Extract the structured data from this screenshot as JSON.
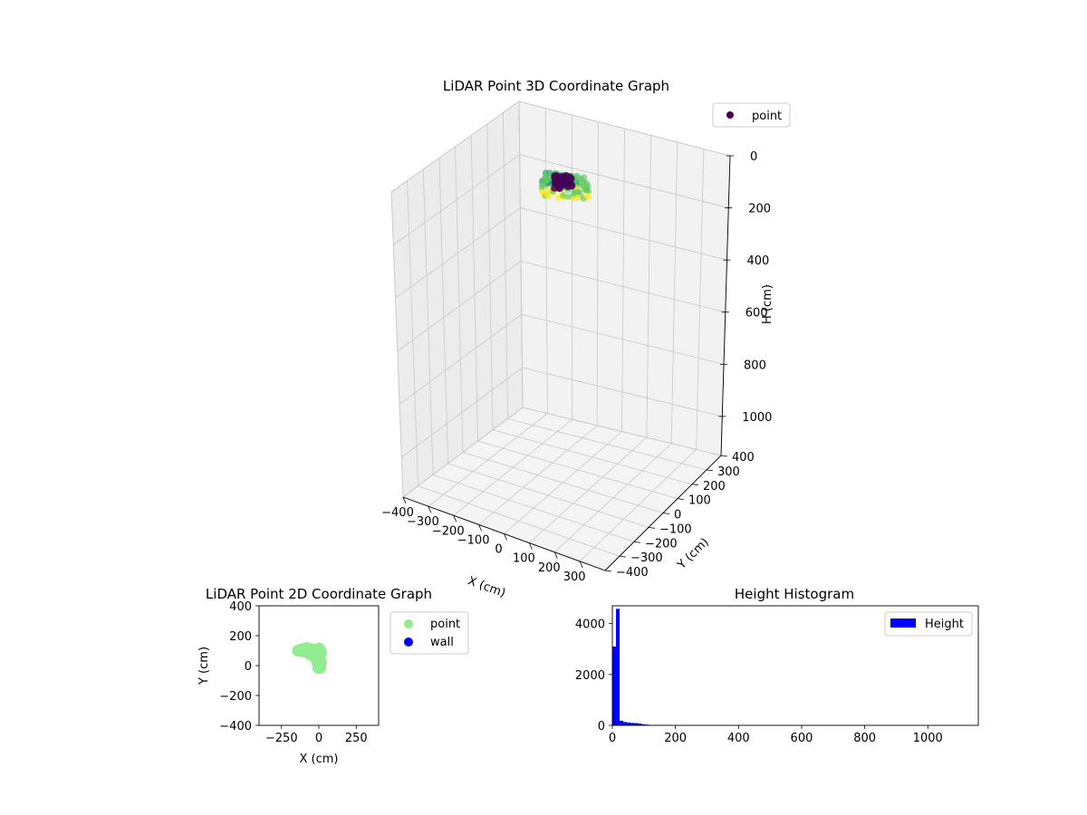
{
  "chart_data": [
    {
      "type": "scatter",
      "projection": "3d",
      "title": "LiDAR Point 3D Coordinate Graph",
      "xlabel": "X (cm)",
      "ylabel": "Y (cm)",
      "zlabel": "H (cm)",
      "xlim": [
        -400,
        400
      ],
      "ylim": [
        -400,
        400
      ],
      "zlim": [
        1150,
        0
      ],
      "xticks": [
        "−400",
        "−300",
        "−200",
        "−100",
        "0",
        "100",
        "200",
        "300"
      ],
      "yticks": [
        "−400",
        "−300",
        "−200",
        "−100",
        "0",
        "100",
        "200",
        "300",
        "400"
      ],
      "zticks": [
        "0",
        "200",
        "400",
        "600",
        "800",
        "1000"
      ],
      "grid": true,
      "colormap": "viridis",
      "legend": {
        "position": "top-right",
        "entries": [
          {
            "label": "point",
            "color": "#440154"
          }
        ]
      },
      "cluster": {
        "x_range": [
          -150,
          40
        ],
        "y_range": [
          -30,
          130
        ],
        "h_range": [
          0,
          60
        ],
        "note_colors": [
          "#440154",
          "#21918c",
          "#5ec962",
          "#fde725"
        ]
      }
    },
    {
      "type": "scatter",
      "title": "LiDAR Point 2D Coordinate Graph",
      "xlabel": "X (cm)",
      "ylabel": "Y (cm)",
      "xlim": [
        -400,
        400
      ],
      "ylim": [
        -400,
        400
      ],
      "xticks": [
        -250,
        0,
        250
      ],
      "yticks": [
        -400,
        -200,
        0,
        200,
        400
      ],
      "legend": {
        "position": "outside-right",
        "entries": [
          {
            "label": "point",
            "color": "#90ee90"
          },
          {
            "label": "wall",
            "color": "#0000ff"
          }
        ]
      },
      "series": [
        {
          "name": "point",
          "color": "#90ee90",
          "points": [
            [
              -140,
              100
            ],
            [
              -120,
              108
            ],
            [
              -100,
              112
            ],
            [
              -90,
              95
            ],
            [
              -80,
              118
            ],
            [
              -70,
              100
            ],
            [
              -60,
              90
            ],
            [
              -50,
              110
            ],
            [
              -40,
              105
            ],
            [
              -30,
              95
            ],
            [
              -20,
              90
            ],
            [
              -10,
              110
            ],
            [
              0,
              115
            ],
            [
              10,
              105
            ],
            [
              15,
              90
            ],
            [
              10,
              70
            ],
            [
              0,
              60
            ],
            [
              -10,
              50
            ],
            [
              -15,
              35
            ],
            [
              -10,
              20
            ],
            [
              -5,
              10
            ],
            [
              0,
              0
            ],
            [
              5,
              -10
            ],
            [
              0,
              -5
            ],
            [
              -20,
              70
            ],
            [
              -40,
              80
            ],
            [
              -60,
              75
            ],
            [
              -80,
              90
            ],
            [
              -110,
              95
            ],
            [
              -30,
              60
            ],
            [
              5,
              40
            ],
            [
              15,
              20
            ],
            [
              10,
              -15
            ],
            [
              -5,
              -15
            ]
          ]
        }
      ]
    },
    {
      "type": "bar",
      "title": "Height Histogram",
      "xlim": [
        0,
        1160
      ],
      "ylim": [
        0,
        4700
      ],
      "xticks": [
        0,
        200,
        400,
        600,
        800,
        1000
      ],
      "yticks": [
        0,
        2000,
        4000
      ],
      "legend": {
        "position": "top-right",
        "entries": [
          {
            "label": "Height",
            "color": "#0000ff"
          }
        ]
      },
      "color": "#0000ff",
      "bin_width": 11.6,
      "bins": [
        [
          0,
          3100
        ],
        [
          11.6,
          4580
        ],
        [
          23.2,
          180
        ],
        [
          34.8,
          130
        ],
        [
          46.4,
          110
        ],
        [
          58,
          95
        ],
        [
          69.6,
          90
        ],
        [
          81.2,
          70
        ],
        [
          92.8,
          45
        ],
        [
          104.4,
          30
        ],
        [
          116,
          15
        ],
        [
          127.6,
          12
        ],
        [
          139.2,
          10
        ],
        [
          150.8,
          9
        ],
        [
          162.4,
          8
        ],
        [
          174,
          8
        ],
        [
          185.6,
          7
        ],
        [
          197.2,
          7
        ],
        [
          208.8,
          6
        ],
        [
          220.4,
          6
        ],
        [
          232,
          5
        ],
        [
          243.6,
          5
        ],
        [
          255.2,
          5
        ],
        [
          266.8,
          4
        ],
        [
          278.4,
          4
        ],
        [
          290,
          4
        ],
        [
          301.6,
          3
        ],
        [
          313.2,
          3
        ],
        [
          324.8,
          3
        ],
        [
          336.4,
          3
        ],
        [
          348,
          3
        ],
        [
          359.6,
          2
        ],
        [
          371.2,
          2
        ],
        [
          382.8,
          2
        ],
        [
          394.4,
          2
        ],
        [
          406,
          2
        ],
        [
          417.6,
          2
        ],
        [
          429.2,
          2
        ],
        [
          440.8,
          2
        ],
        [
          452.4,
          2
        ],
        [
          464,
          2
        ],
        [
          475.6,
          2
        ],
        [
          487.2,
          2
        ],
        [
          498.8,
          2
        ],
        [
          510.4,
          2
        ],
        [
          522,
          2
        ],
        [
          533.6,
          2
        ],
        [
          545.2,
          2
        ],
        [
          556.8,
          2
        ],
        [
          568.4,
          2
        ],
        [
          580,
          2
        ],
        [
          591.6,
          2
        ],
        [
          603.2,
          2
        ],
        [
          614.8,
          2
        ],
        [
          626.4,
          2
        ],
        [
          638,
          2
        ],
        [
          649.6,
          2
        ],
        [
          661.2,
          2
        ],
        [
          672.8,
          2
        ],
        [
          684.4,
          2
        ],
        [
          696,
          2
        ],
        [
          707.6,
          2
        ],
        [
          719.2,
          2
        ],
        [
          730.8,
          2
        ],
        [
          742.4,
          2
        ],
        [
          754,
          2
        ],
        [
          765.6,
          2
        ],
        [
          777.2,
          2
        ],
        [
          788.8,
          2
        ],
        [
          800.4,
          2
        ],
        [
          812,
          2
        ],
        [
          823.6,
          2
        ],
        [
          835.2,
          2
        ],
        [
          846.8,
          2
        ],
        [
          858.4,
          2
        ],
        [
          870,
          2
        ],
        [
          881.6,
          2
        ],
        [
          893.2,
          2
        ],
        [
          904.8,
          2
        ],
        [
          916.4,
          2
        ],
        [
          928,
          2
        ],
        [
          939.6,
          2
        ],
        [
          951.2,
          2
        ],
        [
          962.8,
          2
        ],
        [
          974.4,
          2
        ],
        [
          986,
          2
        ],
        [
          997.6,
          2
        ],
        [
          1009.2,
          2
        ],
        [
          1020.8,
          2
        ],
        [
          1032.4,
          2
        ],
        [
          1044,
          2
        ],
        [
          1055.6,
          2
        ],
        [
          1067.2,
          2
        ],
        [
          1078.8,
          2
        ],
        [
          1090.4,
          2
        ],
        [
          1102,
          2
        ],
        [
          1113.6,
          2
        ],
        [
          1125.2,
          2
        ],
        [
          1136.8,
          2
        ],
        [
          1148.4,
          2
        ]
      ]
    }
  ]
}
